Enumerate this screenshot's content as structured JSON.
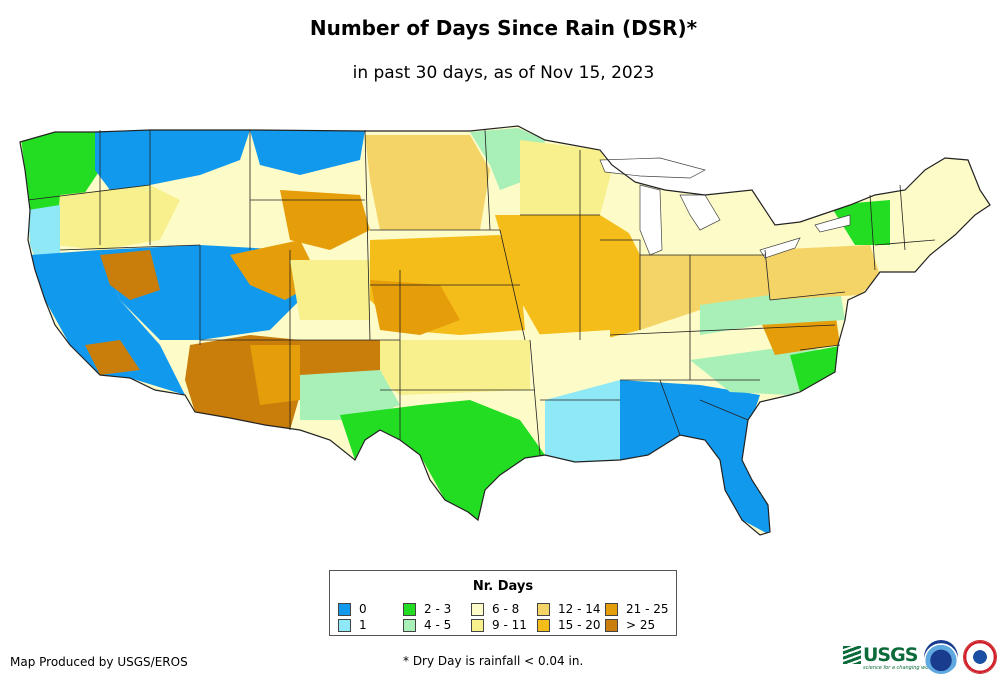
{
  "title": "Number of Days Since Rain (DSR)*",
  "subtitle": "in past 30 days, as of Nov 15, 2023",
  "legend": {
    "title": "Nr. Days",
    "items": [
      {
        "label": "0",
        "color": "#1199ee"
      },
      {
        "label": "1",
        "color": "#8ee8f5"
      },
      {
        "label": "2 - 3",
        "color": "#22dd22"
      },
      {
        "label": "4 - 5",
        "color": "#a8f0b8"
      },
      {
        "label": "6 - 8",
        "color": "#fdfbc8"
      },
      {
        "label": "9 - 11",
        "color": "#f8f08c"
      },
      {
        "label": "12 - 14",
        "color": "#f5d467"
      },
      {
        "label": "15 - 20",
        "color": "#f5bd19"
      },
      {
        "label": "21 - 25",
        "color": "#e59d0a"
      },
      {
        "label": "> 25",
        "color": "#c97d0b"
      }
    ]
  },
  "footer": {
    "credit": "Map Produced by USGS/EROS",
    "note": "* Dry Day is rainfall < 0.04 in."
  },
  "logos": {
    "usgs": "USGS",
    "usgs_tagline": "science for a changing world"
  },
  "map_regions": [
    {
      "name": "pacific-northwest-coast",
      "class": "2 - 3"
    },
    {
      "name": "northern-rockies",
      "class": "0"
    },
    {
      "name": "northern-plains",
      "class": "6 - 8"
    },
    {
      "name": "southwest",
      "class": "> 25"
    },
    {
      "name": "california-coast",
      "class": "0"
    },
    {
      "name": "central-plains",
      "class": "15 - 20"
    },
    {
      "name": "midwest",
      "class": "15 - 20"
    },
    {
      "name": "texas",
      "class": "2 - 3"
    },
    {
      "name": "lower-mississippi-valley",
      "class": "6 - 8"
    },
    {
      "name": "southeast",
      "class": "0"
    },
    {
      "name": "florida",
      "class": "0"
    },
    {
      "name": "great-lakes",
      "class": "6 - 8"
    },
    {
      "name": "new-england",
      "class": "6 - 8"
    },
    {
      "name": "mid-atlantic",
      "class": "4 - 5"
    }
  ]
}
